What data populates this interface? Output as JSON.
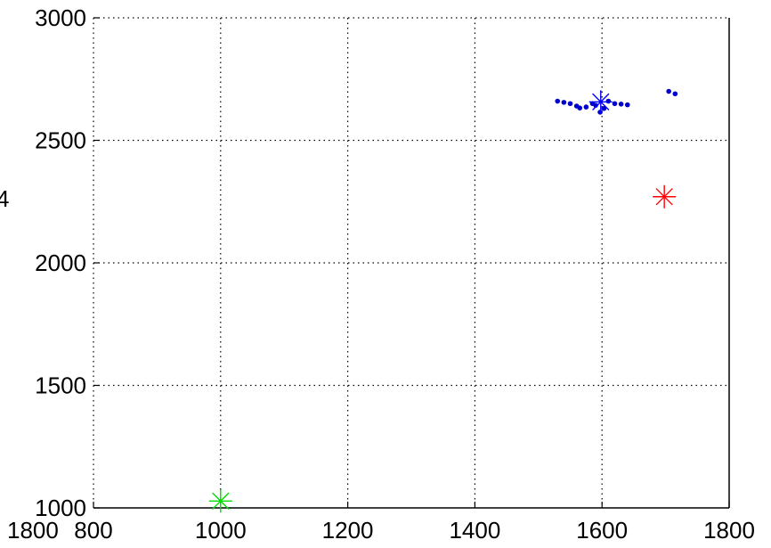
{
  "chart_data": {
    "type": "scatter",
    "title": "",
    "xlabel": "",
    "ylabel": "",
    "xlim": [
      800,
      1800
    ],
    "ylim": [
      1000,
      3000
    ],
    "x_ticks": [
      800,
      1000,
      1200,
      1400,
      1600,
      1800
    ],
    "y_ticks": [
      1000,
      1500,
      2000,
      2500,
      3000
    ],
    "x_tick_labels": [
      "800",
      "1000",
      "1200",
      "1400",
      "1600",
      "1800"
    ],
    "y_tick_labels": [
      "1000",
      "1500",
      "2000",
      "2500",
      "3000"
    ],
    "extra_left_label": "1800",
    "grid": true,
    "series": [
      {
        "marker": "dot",
        "color": "#0000cc",
        "points": [
          [
            1530,
            2660
          ],
          [
            1540,
            2655
          ],
          [
            1550,
            2650
          ],
          [
            1560,
            2640
          ],
          [
            1565,
            2632
          ],
          [
            1575,
            2636
          ],
          [
            1585,
            2650
          ],
          [
            1590,
            2643
          ],
          [
            1597,
            2615
          ],
          [
            1603,
            2630
          ],
          [
            1610,
            2660
          ],
          [
            1620,
            2650
          ],
          [
            1630,
            2648
          ],
          [
            1640,
            2645
          ],
          [
            1705,
            2700
          ],
          [
            1715,
            2690
          ]
        ]
      },
      {
        "marker": "star",
        "color": "#0000ff",
        "points": [
          [
            1598,
            2657
          ]
        ]
      },
      {
        "marker": "star",
        "color": "#ff0000",
        "points": [
          [
            1698,
            2270
          ]
        ]
      },
      {
        "marker": "star",
        "color": "#00dd00",
        "points": [
          [
            1000,
            1028
          ]
        ]
      }
    ]
  }
}
